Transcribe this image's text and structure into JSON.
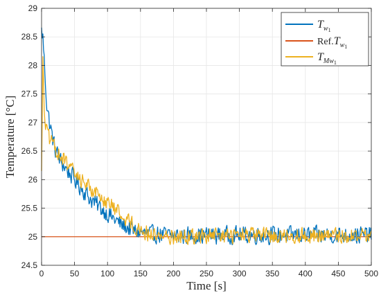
{
  "chart_data": {
    "type": "line",
    "title": "",
    "xlabel": "Time [s]",
    "ylabel": "Temperature [°C]",
    "xlim": [
      0,
      500
    ],
    "ylim": [
      24.5,
      29
    ],
    "xticks": [
      "0",
      "50",
      "100",
      "150",
      "200",
      "250",
      "300",
      "350",
      "400",
      "450",
      "500"
    ],
    "yticks": [
      "24.5",
      "25",
      "25.5",
      "26",
      "26.5",
      "27",
      "27.5",
      "28",
      "28.5",
      "29"
    ],
    "grid": true,
    "legend_position": "top-right",
    "noise_note": "traces are noisy; anchor points below are the visible trends",
    "series": [
      {
        "name": "T_w1",
        "color": "#0072BD",
        "noise": 0.09,
        "anchors": [
          [
            0,
            28.6
          ],
          [
            2,
            28.5
          ],
          [
            5,
            27.9
          ],
          [
            8,
            27.3
          ],
          [
            12,
            27.0
          ],
          [
            20,
            26.55
          ],
          [
            30,
            26.3
          ],
          [
            50,
            26.0
          ],
          [
            75,
            25.65
          ],
          [
            100,
            25.4
          ],
          [
            120,
            25.22
          ],
          [
            140,
            25.1
          ],
          [
            160,
            25.05
          ],
          [
            200,
            25.02
          ],
          [
            300,
            25.03
          ],
          [
            400,
            25.03
          ],
          [
            500,
            25.03
          ]
        ]
      },
      {
        "name": "Ref.T_w1",
        "color": "#D95319",
        "noise": 0,
        "anchors": [
          [
            0,
            25.0
          ],
          [
            500,
            25.0
          ]
        ]
      },
      {
        "name": "T_Mw1",
        "color": "#EDB120",
        "noise": 0.08,
        "anchors": [
          [
            0,
            26.2
          ],
          [
            2,
            28.1
          ],
          [
            4,
            27.2
          ],
          [
            7,
            26.9
          ],
          [
            12,
            26.7
          ],
          [
            20,
            26.55
          ],
          [
            30,
            26.4
          ],
          [
            50,
            26.1
          ],
          [
            75,
            25.85
          ],
          [
            100,
            25.6
          ],
          [
            120,
            25.4
          ],
          [
            140,
            25.2
          ],
          [
            160,
            25.05
          ],
          [
            200,
            25.0
          ],
          [
            300,
            25.02
          ],
          [
            400,
            25.02
          ],
          [
            500,
            25.02
          ]
        ]
      }
    ]
  }
}
